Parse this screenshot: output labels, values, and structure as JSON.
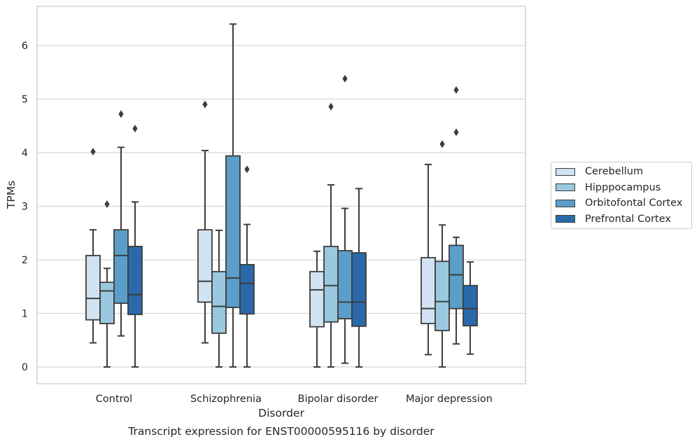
{
  "caption": "Transcript expression for ENST00000595116 by disorder",
  "chart_data": {
    "type": "box",
    "xlabel": "Disorder",
    "ylabel": "TPMs",
    "ylim": [
      -0.3,
      6.7
    ],
    "yticks": [
      0,
      1,
      2,
      3,
      4,
      5,
      6
    ],
    "grid": "horizontal",
    "legend_position": "right",
    "categories": [
      "Control",
      "Schizophrenia",
      "Bipolar disorder",
      "Major depression"
    ],
    "series": [
      {
        "name": "Cerebellum",
        "color": "#d1e2f2",
        "boxes": [
          {
            "whislo": 0.45,
            "q1": 0.88,
            "med": 1.28,
            "q3": 2.08,
            "whishi": 2.56,
            "fliers": [
              4.02
            ]
          },
          {
            "whislo": 0.45,
            "q1": 1.21,
            "med": 1.6,
            "q3": 2.56,
            "whishi": 4.04,
            "fliers": [
              4.9
            ]
          },
          {
            "whislo": 0.0,
            "q1": 0.75,
            "med": 1.44,
            "q3": 1.78,
            "whishi": 2.16,
            "fliers": []
          },
          {
            "whislo": 0.23,
            "q1": 0.81,
            "med": 1.09,
            "q3": 2.04,
            "whishi": 3.78,
            "fliers": []
          }
        ]
      },
      {
        "name": "Hipppocampus",
        "color": "#9ac8e0",
        "boxes": [
          {
            "whislo": 0.0,
            "q1": 0.81,
            "med": 1.42,
            "q3": 1.58,
            "whishi": 1.84,
            "fliers": [
              3.04
            ]
          },
          {
            "whislo": 0.0,
            "q1": 0.63,
            "med": 1.13,
            "q3": 1.78,
            "whishi": 2.55,
            "fliers": []
          },
          {
            "whislo": 0.0,
            "q1": 0.84,
            "med": 1.52,
            "q3": 2.25,
            "whishi": 3.4,
            "fliers": [
              4.86
            ]
          },
          {
            "whislo": 0.0,
            "q1": 0.68,
            "med": 1.22,
            "q3": 1.97,
            "whishi": 2.65,
            "fliers": [
              4.16
            ]
          }
        ]
      },
      {
        "name": "Orbitofontal Cortex",
        "color": "#5a9ec9",
        "boxes": [
          {
            "whislo": 0.58,
            "q1": 1.19,
            "med": 2.08,
            "q3": 2.56,
            "whishi": 4.1,
            "fliers": [
              4.72
            ]
          },
          {
            "whislo": 0.0,
            "q1": 1.11,
            "med": 1.66,
            "q3": 3.94,
            "whishi": 6.4,
            "fliers": []
          },
          {
            "whislo": 0.07,
            "q1": 0.9,
            "med": 1.21,
            "q3": 2.17,
            "whishi": 2.96,
            "fliers": [
              5.38
            ]
          },
          {
            "whislo": 0.43,
            "q1": 1.09,
            "med": 1.72,
            "q3": 2.27,
            "whishi": 2.42,
            "fliers": [
              4.38,
              5.17
            ]
          }
        ]
      },
      {
        "name": "Prefrontal Cortex",
        "color": "#2a6aab",
        "boxes": [
          {
            "whislo": 0.0,
            "q1": 0.98,
            "med": 1.35,
            "q3": 2.25,
            "whishi": 3.08,
            "fliers": [
              4.45
            ]
          },
          {
            "whislo": 0.0,
            "q1": 0.99,
            "med": 1.56,
            "q3": 1.91,
            "whishi": 2.66,
            "fliers": [
              3.69
            ]
          },
          {
            "whislo": 0.0,
            "q1": 0.76,
            "med": 1.21,
            "q3": 2.13,
            "whishi": 3.33,
            "fliers": []
          },
          {
            "whislo": 0.24,
            "q1": 0.77,
            "med": 1.09,
            "q3": 1.52,
            "whishi": 1.96,
            "fliers": []
          }
        ]
      }
    ]
  }
}
